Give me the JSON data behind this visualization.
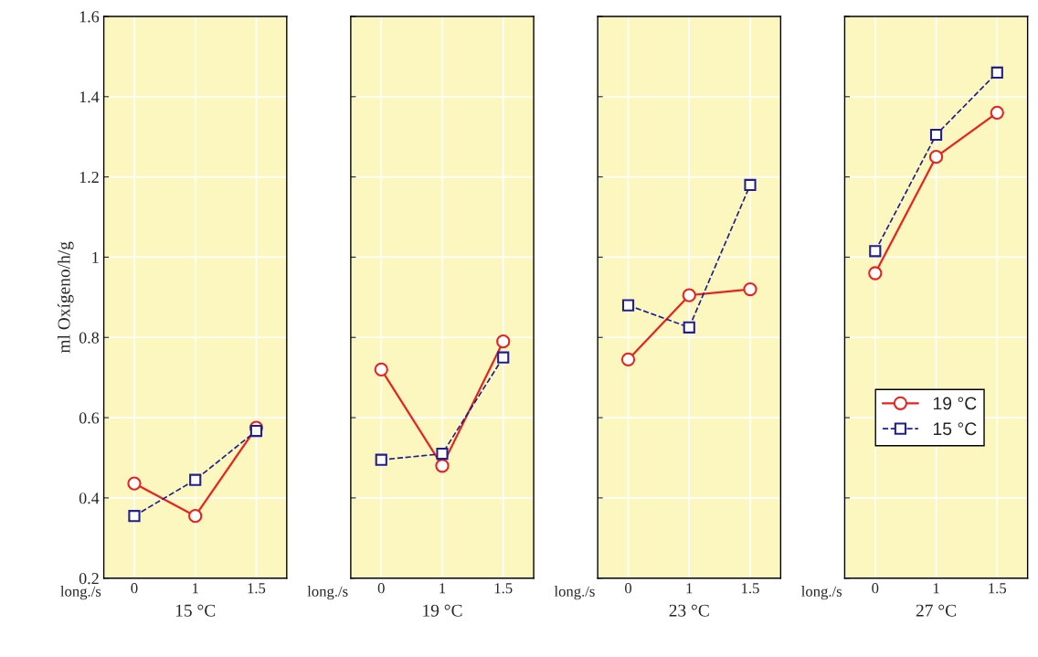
{
  "chart_data": [
    {
      "type": "line",
      "xlabel": "15 °C",
      "ylabel": "ml Oxígeno/h/g",
      "categories": [
        "0",
        "1",
        "1.5"
      ],
      "annotations": [
        "long./s"
      ],
      "ylim": [
        0.2,
        1.6
      ],
      "yticks": [
        0.2,
        0.4,
        0.6,
        0.8,
        1,
        1.2,
        1.4,
        1.6
      ],
      "grid": true,
      "legend": false,
      "series": [
        {
          "color": "#e8231f",
          "marker": "circle",
          "line_style": "solid",
          "values": [
            0.436,
            0.355,
            0.575
          ]
        },
        {
          "color": "#1f1f8f",
          "marker": "square",
          "line_style": "dashed",
          "values": [
            0.355,
            0.445,
            0.567
          ]
        }
      ]
    },
    {
      "type": "line",
      "xlabel": "19 °C",
      "categories": [
        "0",
        "1",
        "1.5"
      ],
      "annotations": [
        "long./s"
      ],
      "ylim": [
        0.2,
        1.6
      ],
      "yticks": [
        0.2,
        0.4,
        0.6,
        0.8,
        1,
        1.2,
        1.4,
        1.6
      ],
      "grid": true,
      "legend": false,
      "tick_labels": "x",
      "series": [
        {
          "color": "#e8231f",
          "marker": "circle",
          "line_style": "solid",
          "values": [
            0.72,
            0.48,
            0.79
          ]
        },
        {
          "color": "#1f1f8f",
          "marker": "square",
          "line_style": "dashed",
          "values": [
            0.495,
            0.51,
            0.75
          ]
        }
      ]
    },
    {
      "type": "line",
      "xlabel": "23 °C",
      "categories": [
        "0",
        "1",
        "1.5"
      ],
      "annotations": [
        "long./s"
      ],
      "ylim": [
        0.2,
        1.6
      ],
      "yticks": [
        0.2,
        0.4,
        0.6,
        0.8,
        1,
        1.2,
        1.4,
        1.6
      ],
      "grid": true,
      "legend": false,
      "tick_labels": "x",
      "series": [
        {
          "color": "#e8231f",
          "marker": "circle",
          "line_style": "solid",
          "values": [
            0.745,
            0.905,
            0.92
          ]
        },
        {
          "color": "#1f1f8f",
          "marker": "square",
          "line_style": "dashed",
          "values": [
            0.88,
            0.825,
            1.18
          ]
        }
      ]
    },
    {
      "type": "line",
      "xlabel": "27 °C",
      "categories": [
        "0",
        "1",
        "1.5"
      ],
      "annotations": [
        "long./s"
      ],
      "ylim": [
        0.2,
        1.6
      ],
      "yticks": [
        0.2,
        0.4,
        0.6,
        0.8,
        1,
        1.2,
        1.4,
        1.6
      ],
      "grid": true,
      "legend": "lower left",
      "tick_labels": "x",
      "series": [
        {
          "name": "19 °C",
          "color": "#e8231f",
          "marker": "circle",
          "line_style": "solid",
          "values": [
            0.96,
            1.25,
            1.36
          ]
        },
        {
          "name": "15 °C",
          "color": "#1f1f8f",
          "marker": "square",
          "line_style": "dashed",
          "values": [
            1.015,
            1.305,
            1.46
          ]
        }
      ]
    }
  ]
}
